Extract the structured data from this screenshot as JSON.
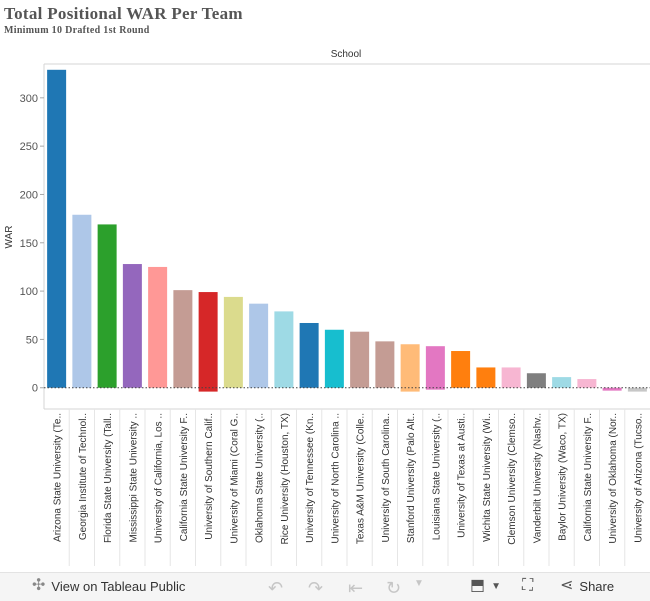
{
  "title": "Total Positional WAR Per Team",
  "subtitle": "Minimum 10 Drafted 1st Round",
  "chart_data": {
    "type": "bar",
    "column_header": "School",
    "ylabel": "WAR",
    "ylim": [
      -22,
      335
    ],
    "yticks": [
      0,
      50,
      100,
      150,
      200,
      250,
      300
    ],
    "categories": [
      "Arizona State University (Te..",
      "Georgia Institute of Technol..",
      "Florida State University (Tall..",
      "Mississippi State University ..",
      "University of California, Los ..",
      "California State University F..",
      "University of Southern Calif..",
      "University of Miami (Coral G..",
      "Oklahoma State University (..",
      "Rice University (Houston, TX)",
      "University of Tennessee (Kn..",
      "University of North Carolina ..",
      "Texas A&M University (Colle..",
      "University of South Carolina..",
      "Stanford University (Palo Alt..",
      "Louisiana State University (..",
      "University of Texas at Austi..",
      "Wichita State University (Wi..",
      "Clemson University (Clemso..",
      "Vanderbilt University (Nashv..",
      "Baylor University (Waco, TX)",
      "California State University F..",
      "University of Oklahoma (Nor..",
      "University of Arizona (Tucso.."
    ],
    "values": [
      329,
      179,
      169,
      128,
      125,
      101,
      99,
      94,
      87,
      79,
      67,
      60,
      58,
      48,
      45,
      43,
      38,
      21,
      21,
      15,
      11,
      9,
      -3,
      -4
    ],
    "neg_extent": [
      0,
      0,
      0,
      0,
      0,
      0,
      -4,
      0,
      0,
      0,
      0,
      0,
      0,
      0,
      -4,
      -2,
      0,
      0,
      0,
      0,
      0,
      0,
      -3,
      -4
    ],
    "colors": [
      "#1f77b4",
      "#aec7e8",
      "#2ca02c",
      "#9467bd",
      "#ff9896",
      "#c49c94",
      "#d62728",
      "#dbdb8d",
      "#aec7e8",
      "#9edae5",
      "#1f77b4",
      "#17becf",
      "#c49c94",
      "#c49c94",
      "#ffbb78",
      "#e377c2",
      "#ff7f0e",
      "#ff7f0e",
      "#f7b6d2",
      "#7f7f7f",
      "#9edae5",
      "#f7b6d2",
      "#e377c2",
      "#c7c7c7"
    ],
    "grid": false,
    "zero_line": "dotted"
  },
  "toolbar": {
    "view_label": "View on Tableau Public",
    "share_label": "Share"
  }
}
